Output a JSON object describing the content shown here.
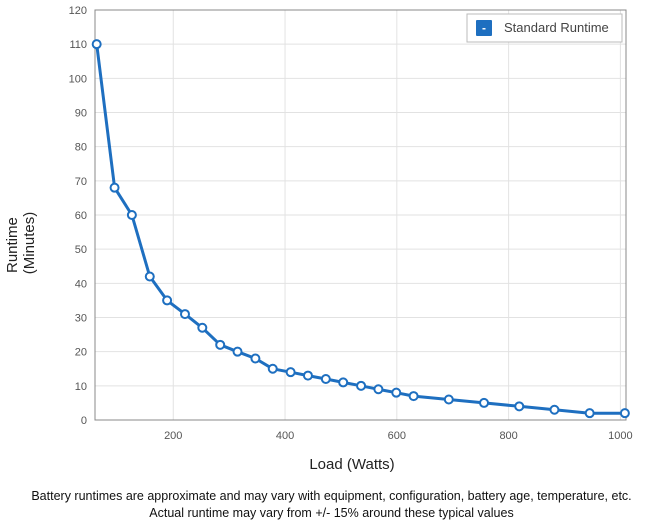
{
  "chart_data": {
    "type": "line",
    "xlabel": "Load (Watts)",
    "ylabel_lines": [
      "Runtime",
      "(Minutes)"
    ],
    "xlim": [
      60,
      1010
    ],
    "ylim": [
      0,
      120
    ],
    "xticks": [
      200,
      400,
      600,
      800,
      1000
    ],
    "yticks": [
      0,
      10,
      20,
      30,
      40,
      50,
      60,
      70,
      80,
      90,
      100,
      110,
      120
    ],
    "grid": true,
    "legend_position": "top-right",
    "legend_marker": "-",
    "series": [
      {
        "name": "Standard Runtime",
        "color": "#1e6fc0",
        "x": [
          63,
          95,
          126,
          158,
          189,
          221,
          252,
          284,
          315,
          347,
          378,
          410,
          441,
          473,
          504,
          536,
          567,
          599,
          630,
          693,
          756,
          819,
          882,
          945,
          1008
        ],
        "y": [
          110,
          68,
          60,
          42,
          35,
          31,
          27,
          22,
          20,
          18,
          15,
          14,
          13,
          12,
          11,
          10,
          9,
          8,
          7,
          6,
          5,
          4,
          3,
          2,
          2
        ]
      }
    ]
  },
  "footnote": {
    "line1": "Battery runtimes are approximate and may vary with equipment, configuration, battery age, temperature, etc.",
    "line2": "Actual runtime may vary from +/- 15% around these typical values"
  }
}
